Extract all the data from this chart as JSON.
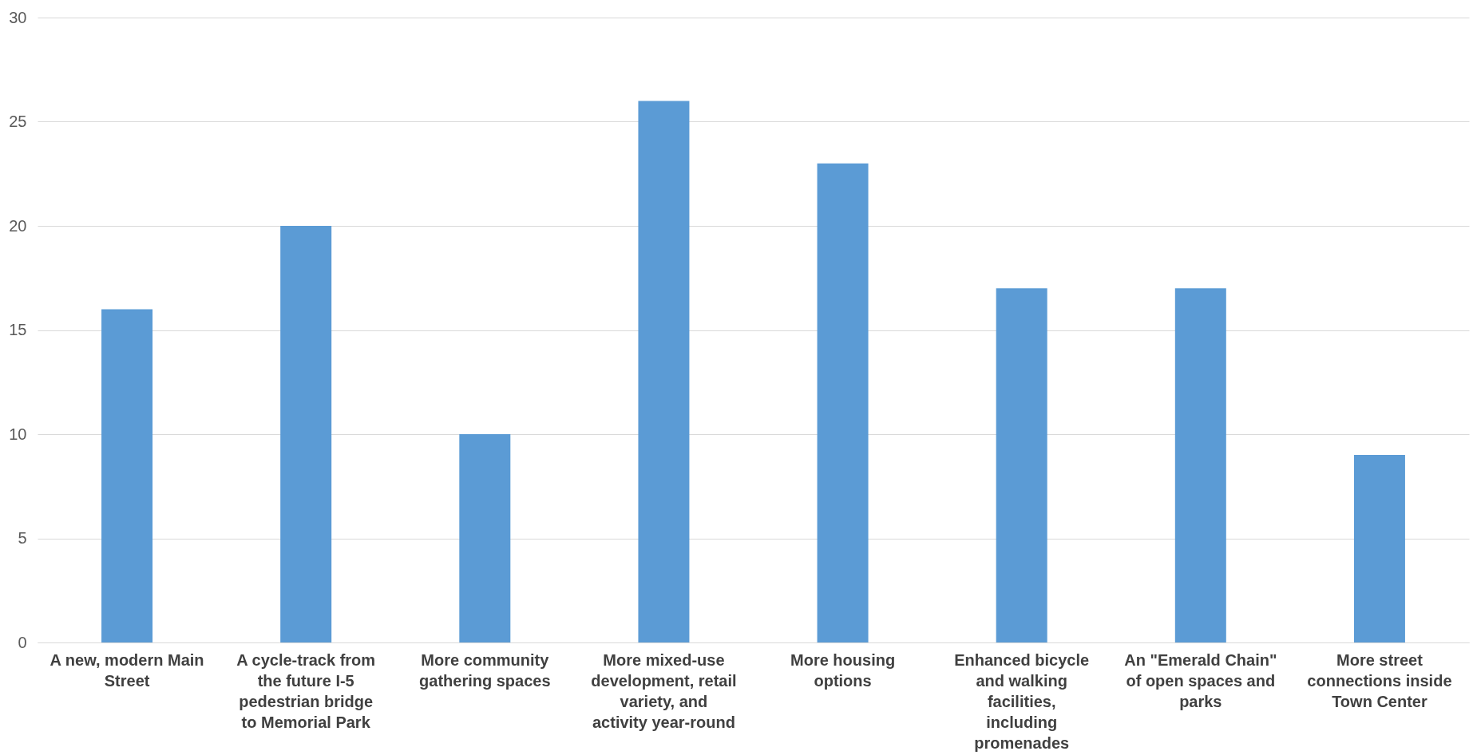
{
  "chart_data": {
    "type": "bar",
    "categories": [
      "A new, modern Main Street",
      "A cycle-track from the future I-5 pedestrian bridge to Memorial Park",
      "More community gathering spaces",
      "More mixed-use development, retail variety, and activity year-round",
      "More housing options",
      "Enhanced bicycle and walking facilities, including promenades",
      "An \"Emerald Chain\" of open spaces and parks",
      "More street connections inside Town Center"
    ],
    "values": [
      16,
      20,
      10,
      26,
      23,
      17,
      17,
      9
    ],
    "color": "#5b9bd5",
    "ylim": [
      0,
      30
    ],
    "yticks": [
      0,
      5,
      10,
      15,
      20,
      25,
      30
    ],
    "grid": "y"
  }
}
